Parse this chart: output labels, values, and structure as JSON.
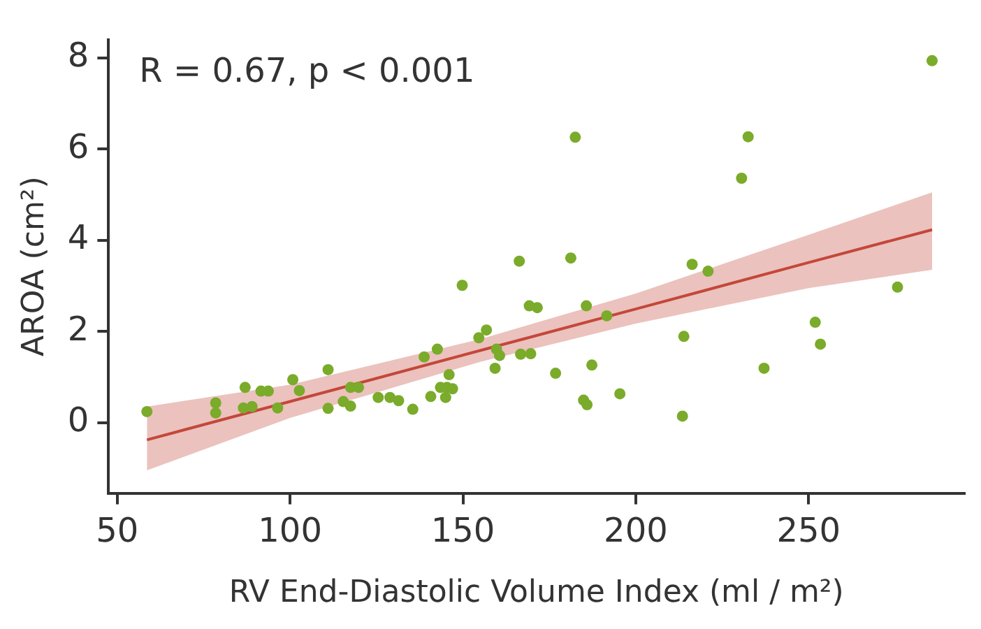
{
  "chart_data": {
    "type": "scatter",
    "xlabel": "RV End-Diastolic Volume Index (ml / m²)",
    "ylabel": "AROA (cm²)",
    "annotations": [
      "R = 0.67, p < 0.001"
    ],
    "xlim": [
      47.5,
      295
    ],
    "ylim": [
      -1.55,
      8.4
    ],
    "xticks": [
      50,
      100,
      150,
      200,
      250
    ],
    "yticks": [
      0,
      2,
      4,
      6,
      8
    ],
    "grid": false,
    "legend": false,
    "marker": "circle",
    "series": [
      {
        "color": "#7aab2a",
        "x": [
          58.6,
          78.5,
          78.5,
          87,
          86.5,
          89,
          91.6,
          93.7,
          96.4,
          100.8,
          102.7,
          111,
          111,
          115.4,
          117.5,
          117.5,
          119.8,
          125.5,
          128.9,
          131.4,
          135.5,
          138.8,
          142.6,
          140.7,
          143.5,
          145,
          145.4,
          147,
          146,
          149.8,
          154.6,
          156.8,
          159.7,
          160.6,
          159.3,
          166.3,
          166.7,
          169.6,
          169.2,
          171.5,
          176.8,
          181.2,
          182.5,
          185.7,
          187.3,
          184.9,
          185.9,
          191.6,
          195.4,
          213.9,
          213.5,
          216.3,
          220.9,
          230.6,
          232.5,
          237.1,
          251.9,
          253.4,
          275.7,
          285.7
        ],
        "values": [
          0.24,
          0.43,
          0.21,
          0.77,
          0.32,
          0.35,
          0.69,
          0.69,
          0.32,
          0.94,
          0.7,
          1.16,
          0.31,
          0.46,
          0.36,
          0.77,
          0.77,
          0.55,
          0.55,
          0.48,
          0.29,
          1.44,
          1.61,
          0.57,
          0.77,
          0.55,
          0.77,
          0.74,
          1.05,
          3.01,
          1.86,
          2.03,
          1.61,
          1.47,
          1.19,
          3.54,
          1.5,
          1.51,
          2.56,
          2.52,
          1.08,
          3.61,
          6.26,
          2.56,
          1.26,
          0.49,
          0.39,
          2.34,
          0.63,
          1.89,
          0.14,
          3.47,
          3.32,
          5.36,
          6.27,
          1.19,
          2.2,
          1.72,
          2.97,
          7.94
        ]
      },
      {
        "type": "line",
        "color": "#c4473a",
        "marker": "none",
        "line_style": "solid",
        "x": [
          58.6,
          100,
          155,
          200,
          250,
          285.7
        ],
        "values": [
          -0.38,
          0.46,
          1.58,
          2.49,
          3.51,
          4.23
        ],
        "lower": [
          -1.05,
          0.1,
          1.33,
          2.17,
          2.95,
          3.35
        ],
        "upper": [
          0.35,
          0.83,
          1.83,
          2.83,
          4.12,
          5.05
        ]
      }
    ]
  }
}
